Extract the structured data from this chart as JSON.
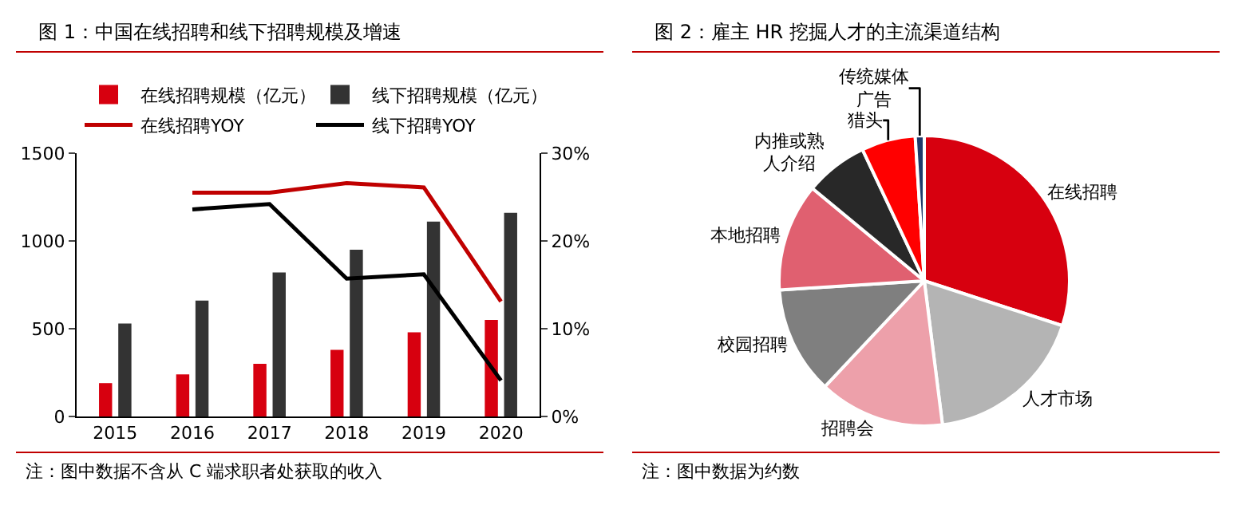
{
  "chart_data": [
    {
      "type": "bar",
      "title": "图 1：中国在线招聘和线下招聘规模及增速",
      "categories": [
        "2015",
        "2016",
        "2017",
        "2018",
        "2019",
        "2020"
      ],
      "series": [
        {
          "name": "在线招聘规模（亿元）",
          "type": "bar",
          "color": "#d7000f",
          "values": [
            190,
            240,
            300,
            380,
            480,
            550
          ]
        },
        {
          "name": "线下招聘规模（亿元）",
          "type": "bar",
          "color": "#333333",
          "values": [
            530,
            660,
            820,
            950,
            1110,
            1160
          ]
        },
        {
          "name": "在线招聘YOY",
          "type": "line",
          "axis": "y2",
          "color": "#c00000",
          "values": [
            null,
            25.5,
            25.5,
            26.6,
            26.1,
            13.1
          ]
        },
        {
          "name": "线下招聘YOY",
          "type": "line",
          "axis": "y2",
          "color": "#000000",
          "values": [
            null,
            23.6,
            24.2,
            15.7,
            16.2,
            4.1
          ]
        }
      ],
      "ylim": [
        0,
        1500
      ],
      "yticks": [
        0,
        500,
        1000,
        1500
      ],
      "y2lim": [
        0,
        30
      ],
      "y2ticks": [
        {
          "value": 0,
          "label": "0%"
        },
        {
          "value": 10,
          "label": "10%"
        },
        {
          "value": 20,
          "label": "20%"
        },
        {
          "value": 30,
          "label": "30%"
        }
      ],
      "legend": "top",
      "grid": false,
      "marker": "none",
      "line_style": "solid",
      "annotations": [
        "注：图中数据不含从 C 端求职者处获取的收入"
      ]
    },
    {
      "type": "pie",
      "title": "图 2：雇主 HR 挖掘人才的主流渠道结构",
      "categories": [
        "在线招聘",
        "人才市场",
        "招聘会",
        "校园招聘",
        "本地招聘",
        "内推或熟人介绍",
        "猎头",
        "传统媒体广告"
      ],
      "values": [
        30,
        18,
        14,
        12,
        12,
        7,
        6,
        1
      ],
      "colors": [
        "#d7000f",
        "#b4b4b4",
        "#eda0aa",
        "#7f7f7f",
        "#e06070",
        "#282828",
        "#ff0000",
        "#1f3a6b"
      ],
      "legend": false,
      "annotations": [
        "注：图中数据为约数"
      ]
    }
  ]
}
